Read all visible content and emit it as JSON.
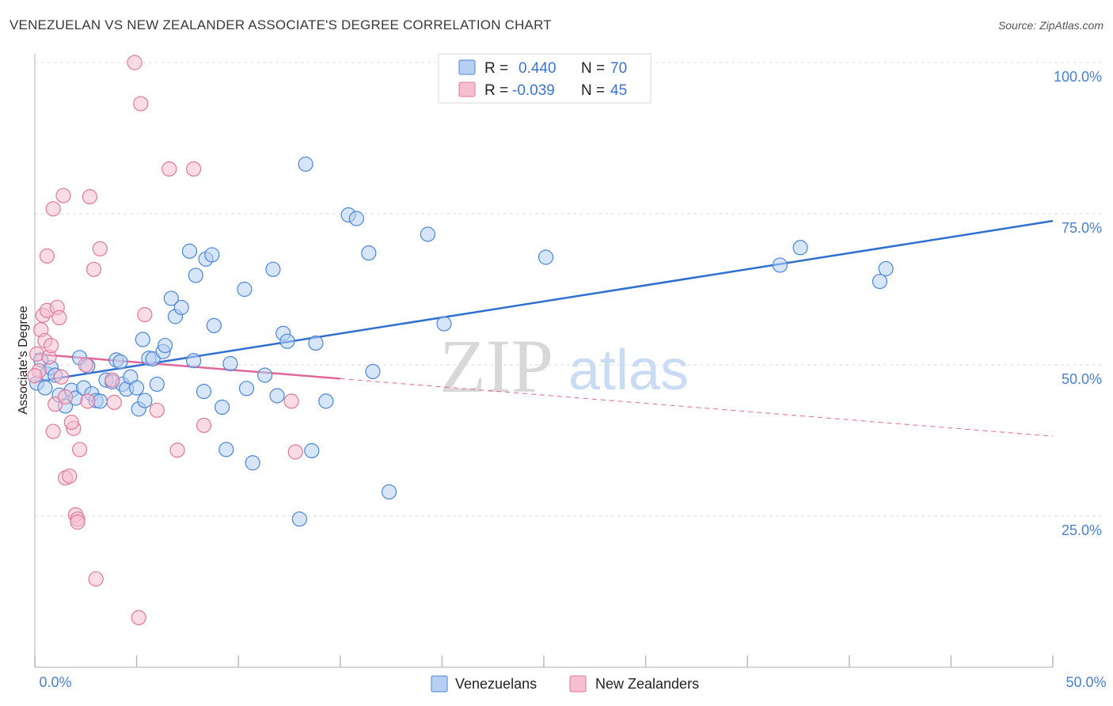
{
  "header": {
    "title": "VENEZUELAN VS NEW ZEALANDER ASSOCIATE'S DEGREE CORRELATION CHART",
    "source": "Source: ZipAtlas.com"
  },
  "watermark": {
    "zip": "ZIP",
    "atlas": "atlas"
  },
  "colors": {
    "blue": "#4a86d6",
    "blue_fill": "#b7cff2",
    "pink": "#e2779c",
    "pink_fill": "#f6bfd0",
    "grid": "#dcdcdc",
    "tick_text": "#4a7fd0"
  },
  "chart_data": {
    "type": "scatter",
    "title": "VENEZUELAN VS NEW ZEALANDER ASSOCIATE'S DEGREE CORRELATION CHART",
    "xlabel": "",
    "ylabel": "Associate's Degree",
    "xlim": [
      0,
      50
    ],
    "ylim": [
      0,
      100
    ],
    "x_tick_labels": [
      "0.0%",
      "50.0%"
    ],
    "y_ticks": [
      25,
      50,
      75,
      100
    ],
    "y_tick_labels": [
      "25.0%",
      "50.0%",
      "75.0%",
      "100.0%"
    ],
    "legend_top": [
      {
        "r_label": "R =",
        "r_value": "0.440",
        "n_label": "N =",
        "n_value": "70",
        "series": "Venezuelans"
      },
      {
        "r_label": "R =",
        "r_value": "-0.039",
        "n_label": "N =",
        "n_value": "45",
        "series": "New Zealanders"
      }
    ],
    "series": [
      {
        "name": "Venezuelans",
        "color": "#4a86d6",
        "trend": {
          "x0": 0,
          "y0": 47.2,
          "x1": 50,
          "y1": 73.8
        },
        "points": [
          [
            0.1,
            47.0
          ],
          [
            0.3,
            50.8
          ],
          [
            0.5,
            46.2
          ],
          [
            0.6,
            48.5
          ],
          [
            0.8,
            49.5
          ],
          [
            1.0,
            48.3
          ],
          [
            1.2,
            45.0
          ],
          [
            1.5,
            43.2
          ],
          [
            1.8,
            45.8
          ],
          [
            2.0,
            44.5
          ],
          [
            2.2,
            51.2
          ],
          [
            2.4,
            46.2
          ],
          [
            2.6,
            49.8
          ],
          [
            2.8,
            45.2
          ],
          [
            3.0,
            44.1
          ],
          [
            3.2,
            44.0
          ],
          [
            3.5,
            47.5
          ],
          [
            3.8,
            47.2
          ],
          [
            4.0,
            50.8
          ],
          [
            4.2,
            50.5
          ],
          [
            4.3,
            46.8
          ],
          [
            4.5,
            46.0
          ],
          [
            4.7,
            48.0
          ],
          [
            5.0,
            46.2
          ],
          [
            5.1,
            42.7
          ],
          [
            5.3,
            54.2
          ],
          [
            5.4,
            44.1
          ],
          [
            5.6,
            51.1
          ],
          [
            5.8,
            51.0
          ],
          [
            6.0,
            46.8
          ],
          [
            6.3,
            52.2
          ],
          [
            6.4,
            53.2
          ],
          [
            6.7,
            61.0
          ],
          [
            6.9,
            58.0
          ],
          [
            7.2,
            59.5
          ],
          [
            7.6,
            68.8
          ],
          [
            7.8,
            50.7
          ],
          [
            7.9,
            64.8
          ],
          [
            8.3,
            45.6
          ],
          [
            8.4,
            67.5
          ],
          [
            8.7,
            68.2
          ],
          [
            8.8,
            56.5
          ],
          [
            9.2,
            43.0
          ],
          [
            9.4,
            36.0
          ],
          [
            9.6,
            50.2
          ],
          [
            10.3,
            62.5
          ],
          [
            10.4,
            46.1
          ],
          [
            10.7,
            33.8
          ],
          [
            11.3,
            48.3
          ],
          [
            11.7,
            65.8
          ],
          [
            11.9,
            44.9
          ],
          [
            12.2,
            55.2
          ],
          [
            12.4,
            53.9
          ],
          [
            13.0,
            24.5
          ],
          [
            13.3,
            83.2
          ],
          [
            13.6,
            35.8
          ],
          [
            13.8,
            53.6
          ],
          [
            14.3,
            44.0
          ],
          [
            15.4,
            74.8
          ],
          [
            15.8,
            74.2
          ],
          [
            16.4,
            68.5
          ],
          [
            16.6,
            48.9
          ],
          [
            17.4,
            29.0
          ],
          [
            19.3,
            71.6
          ],
          [
            20.1,
            56.8
          ],
          [
            25.1,
            67.8
          ],
          [
            36.6,
            66.5
          ],
          [
            37.6,
            69.4
          ],
          [
            41.5,
            63.8
          ],
          [
            41.8,
            65.9
          ]
        ]
      },
      {
        "name": "New Zealanders",
        "color": "#e2779c",
        "trend": {
          "x0": 0,
          "y0": 51.8,
          "x1": 50,
          "y1": 38.2,
          "solid_until_x": 15
        },
        "points": [
          [
            0.1,
            51.8
          ],
          [
            0.2,
            49.0
          ],
          [
            0.3,
            55.8
          ],
          [
            0.4,
            58.2
          ],
          [
            0.5,
            54.0
          ],
          [
            0.6,
            59.0
          ],
          [
            0.7,
            51.3
          ],
          [
            0.8,
            53.2
          ],
          [
            0.9,
            39.0
          ],
          [
            0.9,
            75.8
          ],
          [
            1.0,
            43.5
          ],
          [
            1.1,
            59.5
          ],
          [
            1.2,
            57.8
          ],
          [
            1.3,
            48.0
          ],
          [
            1.4,
            78.0
          ],
          [
            1.5,
            44.7
          ],
          [
            1.5,
            31.3
          ],
          [
            1.7,
            31.6
          ],
          [
            1.9,
            39.5
          ],
          [
            2.0,
            25.2
          ],
          [
            2.1,
            24.5
          ],
          [
            2.1,
            24.0
          ],
          [
            2.2,
            36.0
          ],
          [
            2.5,
            50.0
          ],
          [
            2.6,
            44.0
          ],
          [
            2.7,
            77.8
          ],
          [
            2.9,
            65.8
          ],
          [
            3.0,
            14.6
          ],
          [
            3.2,
            69.2
          ],
          [
            3.8,
            47.5
          ],
          [
            3.9,
            43.8
          ],
          [
            4.9,
            100.0
          ],
          [
            5.1,
            8.2
          ],
          [
            5.2,
            93.2
          ],
          [
            5.4,
            58.3
          ],
          [
            6.0,
            42.5
          ],
          [
            6.6,
            82.4
          ],
          [
            7.0,
            35.9
          ],
          [
            7.8,
            82.4
          ],
          [
            8.3,
            40.0
          ],
          [
            12.6,
            44.0
          ],
          [
            12.8,
            35.6
          ],
          [
            0.0,
            48.2
          ],
          [
            1.8,
            40.5
          ],
          [
            0.6,
            68.0
          ]
        ]
      }
    ],
    "legend_bottom": [
      "Venezuelans",
      "New Zealanders"
    ]
  }
}
